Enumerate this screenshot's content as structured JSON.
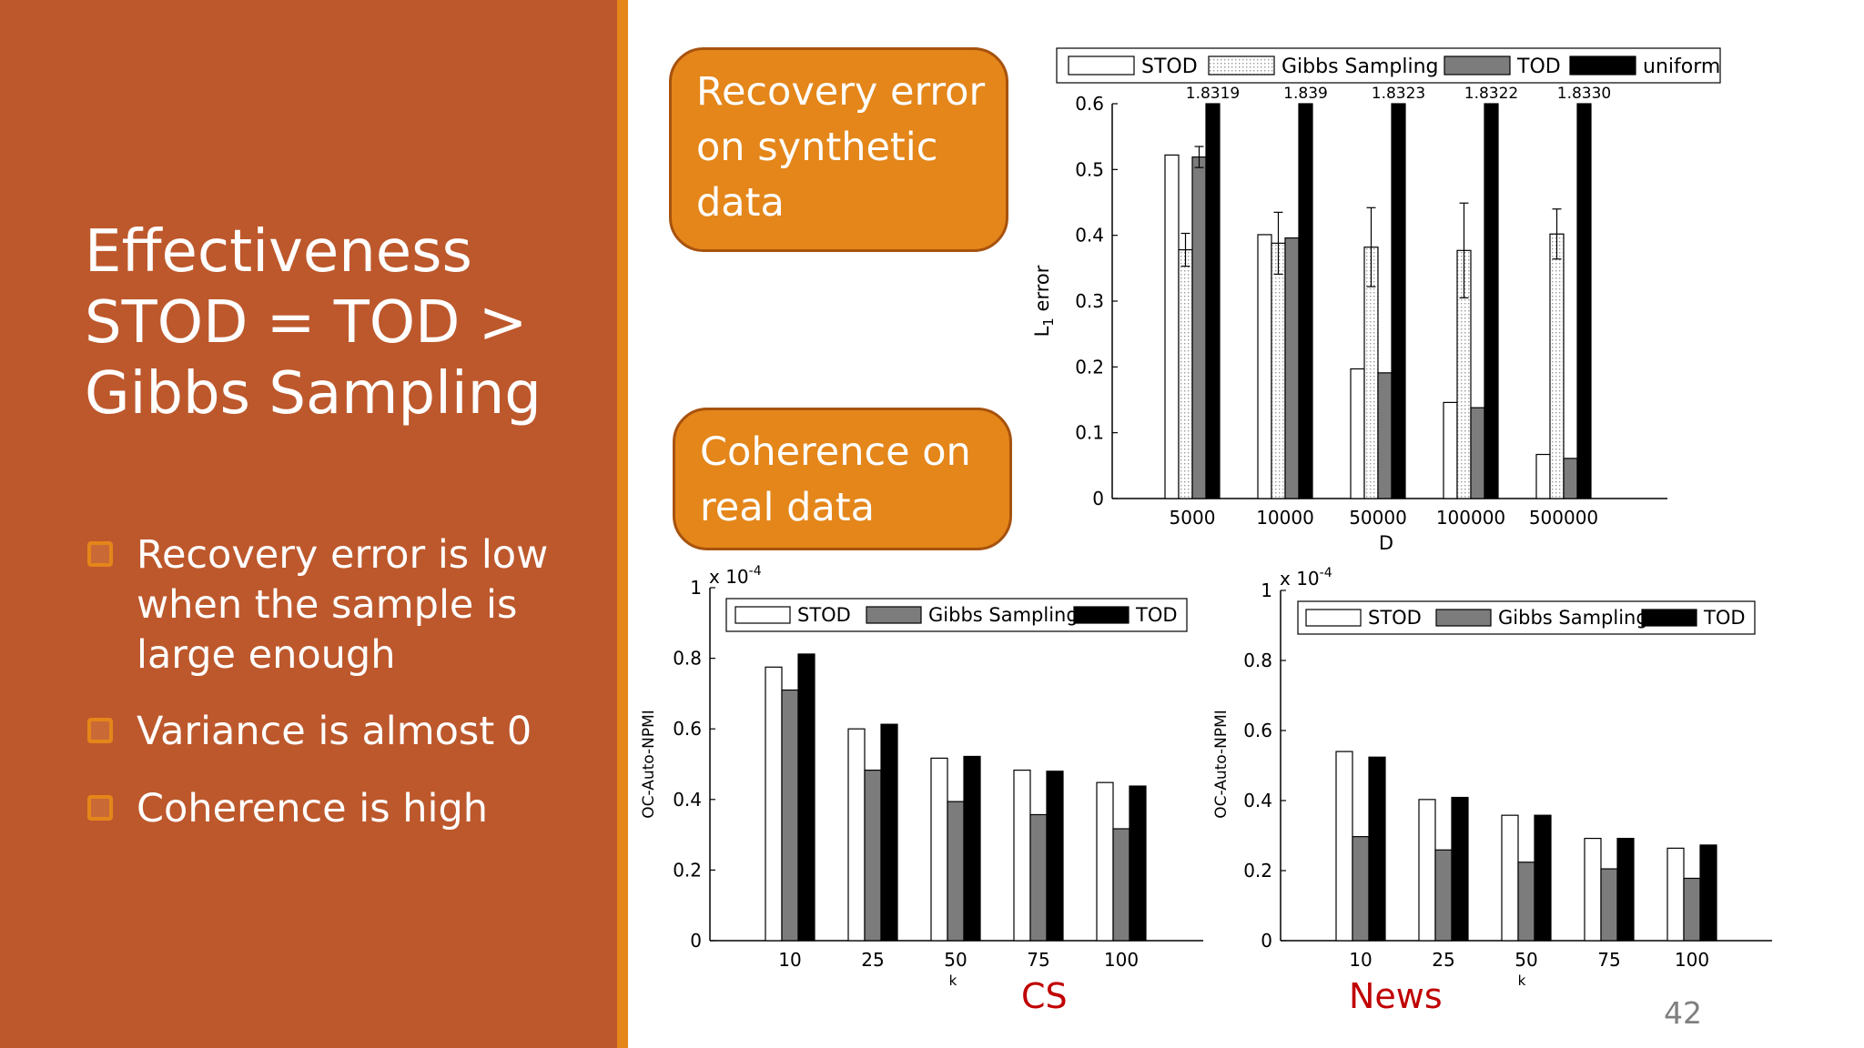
{
  "slide": {
    "title_lines": [
      "Effectiveness",
      "STOD = TOD >",
      "Gibbs Sampling"
    ],
    "bullets": [
      [
        "Recovery error is low",
        "when the sample is",
        "large enough"
      ],
      [
        "Variance is almost 0"
      ],
      [
        "Coherence is high"
      ]
    ],
    "callouts": {
      "recovery": [
        "Recovery error",
        "on synthetic",
        "data"
      ],
      "coherence": [
        "Coherence on",
        "real data"
      ]
    },
    "captions": {
      "cs": "CS",
      "news": "News"
    },
    "page_number": "42",
    "colors": {
      "left_panel": "#bd582c",
      "accent": "#e4861a",
      "caption": "#c00000"
    }
  },
  "chart_data": [
    {
      "id": "recovery",
      "type": "bar",
      "categories": [
        "5000",
        "10000",
        "50000",
        "100000",
        "500000"
      ],
      "xlabel": "D",
      "ylabel": "L1 error",
      "ylim": [
        0,
        0.6
      ],
      "yticks": [
        "0",
        "0.1",
        "0.2",
        "0.3",
        "0.4",
        "0.5",
        "0.6"
      ],
      "legend_position": "top",
      "legend": [
        "STOD",
        "Gibbs Sampling",
        "TOD",
        "uniform"
      ],
      "series": [
        {
          "name": "STOD",
          "fill": "white",
          "values": [
            0.522,
            0.401,
            0.197,
            0.146,
            0.067
          ]
        },
        {
          "name": "Gibbs Sampling",
          "fill": "dotted",
          "values": [
            0.378,
            0.388,
            0.382,
            0.377,
            0.402
          ],
          "error": [
            0.025,
            0.047,
            0.06,
            0.072,
            0.038
          ]
        },
        {
          "name": "TOD",
          "fill": "gray",
          "values": [
            0.519,
            0.396,
            0.191,
            0.138,
            0.061
          ],
          "error": [
            0.016,
            0,
            0,
            0,
            0
          ]
        },
        {
          "name": "uniform",
          "fill": "black",
          "values": [
            1.8319,
            1.839,
            1.8323,
            1.8322,
            1.833
          ],
          "value_labels": [
            "1.8319",
            "1.839",
            "1.8323",
            "1.8322",
            "1.8330"
          ]
        }
      ]
    },
    {
      "id": "cs",
      "type": "bar",
      "categories": [
        "10",
        "25",
        "50",
        "75",
        "100"
      ],
      "xlabel": "k",
      "ylabel": "OC-Auto-NPMI",
      "scale_label": "x 10",
      "scale_exponent": "-4",
      "ylim": [
        0,
        1
      ],
      "yticks": [
        "0",
        "0.2",
        "0.4",
        "0.6",
        "0.8",
        "1"
      ],
      "legend_position": "top",
      "legend": [
        "STOD",
        "Gibbs Sampling",
        "TOD"
      ],
      "series": [
        {
          "name": "STOD",
          "fill": "white",
          "values": [
            0.775,
            0.6,
            0.517,
            0.483,
            0.448
          ]
        },
        {
          "name": "Gibbs Sampling",
          "fill": "gray",
          "values": [
            0.71,
            0.483,
            0.394,
            0.357,
            0.317
          ]
        },
        {
          "name": "TOD",
          "fill": "black",
          "values": [
            0.812,
            0.613,
            0.522,
            0.48,
            0.438
          ]
        }
      ]
    },
    {
      "id": "news",
      "type": "bar",
      "categories": [
        "10",
        "25",
        "50",
        "75",
        "100"
      ],
      "xlabel": "k",
      "ylabel": "OC-Auto-NPMI",
      "scale_label": "x 10",
      "scale_exponent": "-4",
      "ylim": [
        0,
        1
      ],
      "yticks": [
        "0",
        "0.2",
        "0.4",
        "0.6",
        "0.8",
        "1"
      ],
      "legend_position": "top",
      "legend": [
        "STOD",
        "Gibbs Sampling",
        "TOD"
      ],
      "series": [
        {
          "name": "STOD",
          "fill": "white",
          "values": [
            0.54,
            0.403,
            0.358,
            0.292,
            0.264
          ]
        },
        {
          "name": "Gibbs Sampling",
          "fill": "gray",
          "values": [
            0.297,
            0.259,
            0.224,
            0.205,
            0.178
          ]
        },
        {
          "name": "TOD",
          "fill": "black",
          "values": [
            0.524,
            0.409,
            0.358,
            0.292,
            0.273
          ]
        }
      ]
    }
  ]
}
